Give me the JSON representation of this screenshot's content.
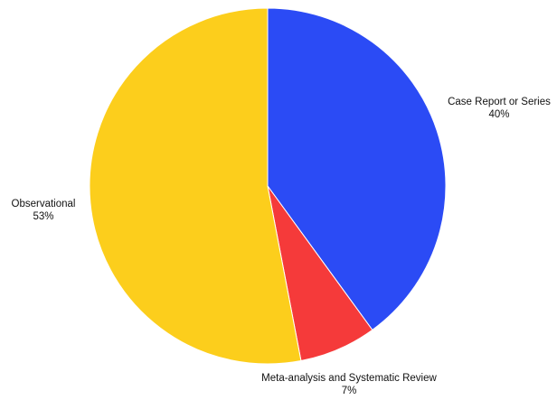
{
  "chart_data": {
    "type": "pie",
    "title": "",
    "start_angle": "12 o'clock",
    "direction": "clockwise",
    "slices": [
      {
        "label": "Case Report or Series",
        "value": 40,
        "display": "40%",
        "color": "#2B4BF5"
      },
      {
        "label": "Meta-analysis and Systematic Review",
        "value": 7,
        "display": "7%",
        "color": "#F53A3A"
      },
      {
        "label": "Observational",
        "value": 53,
        "display": "53%",
        "color": "#FCCE1C"
      }
    ]
  }
}
